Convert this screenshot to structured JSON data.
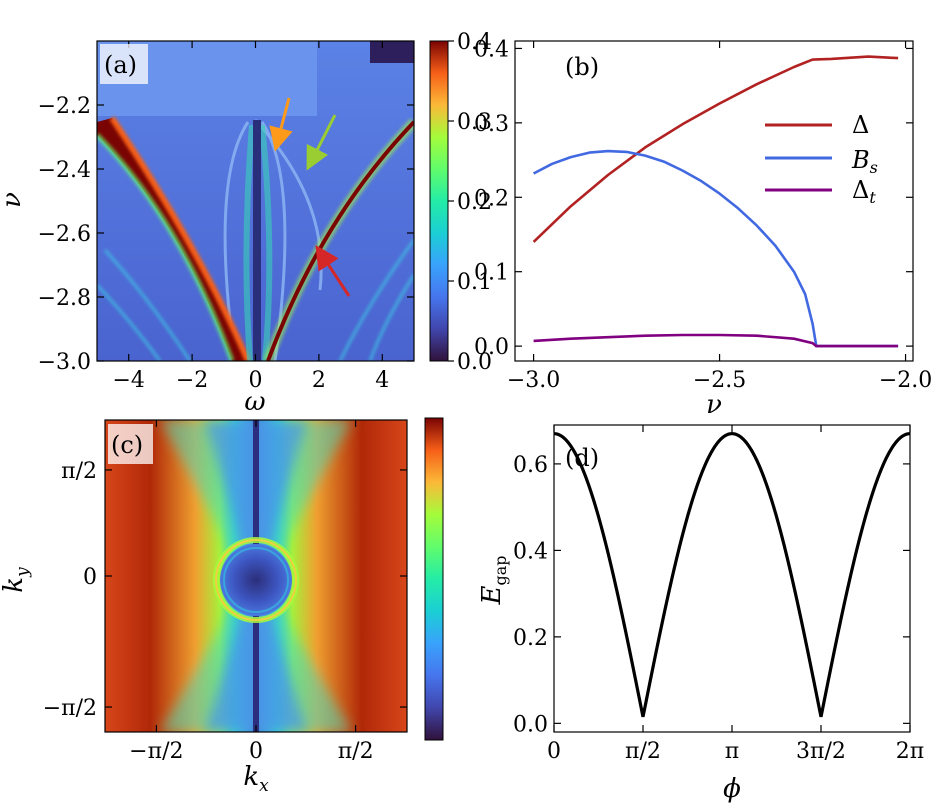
{
  "figure": "four-panel physics figure",
  "chart_data": [
    {
      "panel": "(a)",
      "type": "heatmap",
      "xlabel": "ω",
      "ylabel": "ν",
      "xlim": [
        -5,
        5
      ],
      "ylim": [
        -3.0,
        -2.0
      ],
      "xticks": [
        -4,
        -2,
        0,
        2,
        4
      ],
      "xtick_labels": [
        "−4",
        "−2",
        "0",
        "2",
        "4"
      ],
      "yticks": [
        -2.2,
        -2.4,
        -2.6,
        -2.8,
        -3.0
      ],
      "ytick_labels": [
        "−2.2",
        "−2.4",
        "−2.6",
        "−2.8",
        "−3.0"
      ],
      "colorbar": {
        "range": [
          0.0,
          0.4
        ],
        "ticks": [
          0.0,
          0.1,
          0.2,
          0.3,
          0.4
        ],
        "tick_labels": [
          "0.0",
          "0.1",
          "0.2",
          "0.3",
          "0.4"
        ],
        "colormap": "turbo"
      },
      "annotations": [
        {
          "type": "arrow",
          "color": "#ff9a1a",
          "from": [
            0.9,
            -2.16
          ],
          "to": [
            0.6,
            -2.35
          ]
        },
        {
          "type": "arrow",
          "color": "#9acd32",
          "from": [
            2.6,
            -2.21
          ],
          "to": [
            1.9,
            -2.32
          ]
        },
        {
          "type": "arrow",
          "color": "#d62728",
          "from": [
            3.0,
            -2.79
          ],
          "to": [
            2.1,
            -2.65
          ]
        }
      ]
    },
    {
      "panel": "(b)",
      "type": "line",
      "xlabel": "ν",
      "ylabel": "",
      "xlim": [
        -3.05,
        -1.98
      ],
      "ylim": [
        -0.02,
        0.41
      ],
      "xticks": [
        -3.0,
        -2.5,
        -2.0
      ],
      "xtick_labels": [
        "−3.0",
        "−2.5",
        "−2.0"
      ],
      "yticks": [
        0.0,
        0.1,
        0.2,
        0.3,
        0.4
      ],
      "ytick_labels": [
        "0.0",
        "0.1",
        "0.2",
        "0.3",
        "0.4"
      ],
      "legend_position": "right",
      "series": [
        {
          "name": "Δ",
          "color": "#b22222",
          "x": [
            -3.0,
            -2.9,
            -2.8,
            -2.7,
            -2.6,
            -2.5,
            -2.4,
            -2.3,
            -2.25,
            -2.2,
            -2.1,
            -2.02
          ],
          "y": [
            0.14,
            0.188,
            0.23,
            0.267,
            0.298,
            0.326,
            0.352,
            0.375,
            0.385,
            0.386,
            0.389,
            0.387
          ]
        },
        {
          "name": "B_s",
          "color": "#4169e1",
          "x": [
            -3.0,
            -2.95,
            -2.9,
            -2.85,
            -2.8,
            -2.75,
            -2.7,
            -2.65,
            -2.6,
            -2.55,
            -2.5,
            -2.45,
            -2.4,
            -2.35,
            -2.3,
            -2.27,
            -2.25,
            -2.24,
            -2.2,
            -2.1,
            -2.02
          ],
          "y": [
            0.232,
            0.245,
            0.254,
            0.26,
            0.262,
            0.261,
            0.256,
            0.248,
            0.236,
            0.222,
            0.205,
            0.185,
            0.162,
            0.135,
            0.1,
            0.07,
            0.03,
            0.0,
            0.0,
            0.0,
            0.0
          ]
        },
        {
          "name": "Δ_t",
          "color": "#800080",
          "x": [
            -3.0,
            -2.9,
            -2.8,
            -2.7,
            -2.6,
            -2.5,
            -2.4,
            -2.3,
            -2.25,
            -2.24,
            -2.2,
            -2.1,
            -2.02
          ],
          "y": [
            0.007,
            0.01,
            0.012,
            0.014,
            0.015,
            0.015,
            0.014,
            0.01,
            0.004,
            0.0,
            0.0,
            0.0,
            0.0
          ]
        }
      ]
    },
    {
      "panel": "(c)",
      "type": "heatmap",
      "xlabel": "k_x",
      "ylabel": "k_y",
      "xticks": [
        "−π/2",
        "0",
        "π/2"
      ],
      "yticks": [
        "π/2",
        "0",
        "−π/2"
      ],
      "colorbar": {
        "colormap": "turbo",
        "ticks": []
      }
    },
    {
      "panel": "(d)",
      "type": "line",
      "xlabel": "ϕ",
      "ylabel": "E_gap",
      "xlim": [
        0,
        6.2832
      ],
      "ylim": [
        -0.02,
        0.69
      ],
      "xtick_labels": [
        "0",
        "π/2",
        "π",
        "3π/2",
        "2π"
      ],
      "yticks": [
        0.0,
        0.2,
        0.4,
        0.6
      ],
      "ytick_labels": [
        "0.0",
        "0.2",
        "0.4",
        "0.6"
      ],
      "series": [
        {
          "name": "E_gap",
          "color": "#000000",
          "formula": "0.655*|cos(phi)| + 0.015"
        }
      ]
    }
  ],
  "labels": {
    "a_x": "ω",
    "a_y": "ν",
    "b_x": "ν",
    "c_x_base": "k",
    "c_x_sub": "x",
    "c_y_base": "k",
    "c_y_sub": "y",
    "d_x": "ϕ",
    "d_y_base": "E",
    "d_y_sub": "gap",
    "legend_delta": "Δ",
    "legend_bs_base": "B",
    "legend_bs_sub": "s",
    "legend_dt_base": "Δ",
    "legend_dt_sub": "t"
  }
}
